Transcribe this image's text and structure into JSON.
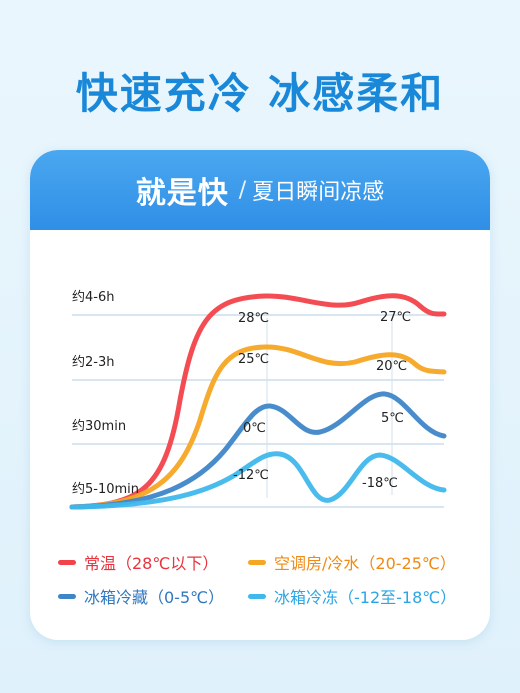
{
  "headline": "快速充冷 冰感柔和",
  "card_header": {
    "main": "就是快",
    "separator": "/",
    "sub": "夏日瞬间凉感"
  },
  "chart_data": {
    "type": "line",
    "time_labels": [
      "约4-6h",
      "约2-3h",
      "约30min",
      "约5-10min"
    ],
    "series": [
      {
        "name": "常温（28℃以下）",
        "color": "#f2424a",
        "points": [
          "28℃",
          "27℃"
        ],
        "level": "约4-6h"
      },
      {
        "name": "空调房/冷水（20-25℃）",
        "color": "#f5a623",
        "points": [
          "25℃",
          "20℃"
        ],
        "level": "约2-3h"
      },
      {
        "name": "冰箱冷藏（0-5℃）",
        "color": "#3f86c8",
        "points": [
          "0℃",
          "5℃"
        ],
        "level": "约30min"
      },
      {
        "name": "冰箱冷冻（-12至-18℃）",
        "color": "#3fb8ec",
        "points": [
          "-12℃",
          "-18℃"
        ],
        "level": "约5-10min"
      }
    ],
    "grid": true
  },
  "legend": [
    {
      "label": "常温（28℃以下）",
      "color": "#f2424a",
      "text_color": "#e8333d"
    },
    {
      "label": "空调房/冷水（20-25℃）",
      "color": "#f5a623",
      "text_color": "#f08a12"
    },
    {
      "label": "冰箱冷藏（0-5℃）",
      "color": "#3f86c8",
      "text_color": "#2f78c0"
    },
    {
      "label": "冰箱冷冻（-12至-18℃）",
      "color": "#3fb8ec",
      "text_color": "#2aa6e6"
    }
  ]
}
